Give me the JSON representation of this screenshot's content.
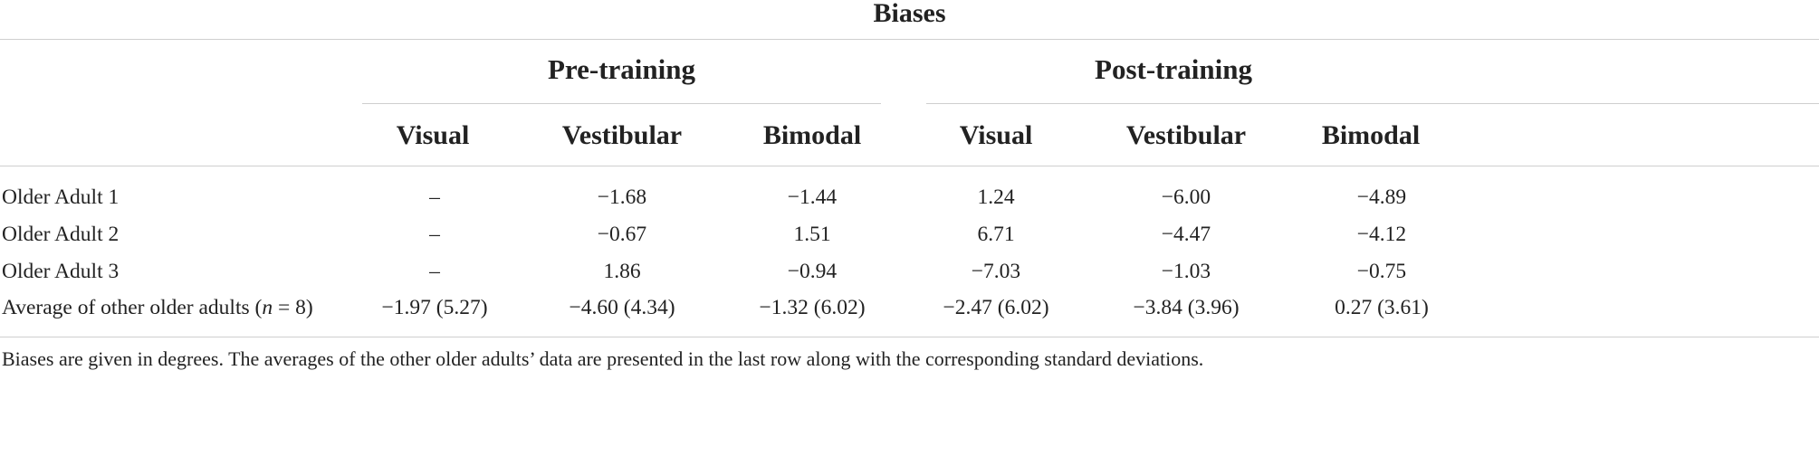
{
  "table": {
    "title": "Biases",
    "groups": [
      "Pre-training",
      "Post-training"
    ],
    "columns": [
      "Visual",
      "Vestibular",
      "Bimodal",
      "Visual",
      "Vestibular",
      "Bimodal"
    ],
    "rows": [
      {
        "label": "Older Adult 1",
        "values": [
          "–",
          "−1.68",
          "−1.44",
          "1.24",
          "−6.00",
          "−4.89"
        ]
      },
      {
        "label": "Older Adult 2",
        "values": [
          "–",
          "−0.67",
          "1.51",
          "6.71",
          "−4.47",
          "−4.12"
        ]
      },
      {
        "label": "Older Adult 3",
        "values": [
          "–",
          "1.86",
          "−0.94",
          "−7.03",
          "−1.03",
          "−0.75"
        ]
      }
    ],
    "average_row": {
      "label_prefix": "Average of other older adults (",
      "label_var": "n",
      "label_suffix": " = 8)",
      "values": [
        "−1.97 (5.27)",
        "−4.60 (4.34)",
        "−1.32 (6.02)",
        "−2.47 (6.02)",
        "−3.84 (3.96)",
        "0.27 (3.61)"
      ]
    },
    "footnote": "Biases are given in degrees. The averages of the other older adults’ data are presented in the last row along with the corresponding standard deviations."
  }
}
